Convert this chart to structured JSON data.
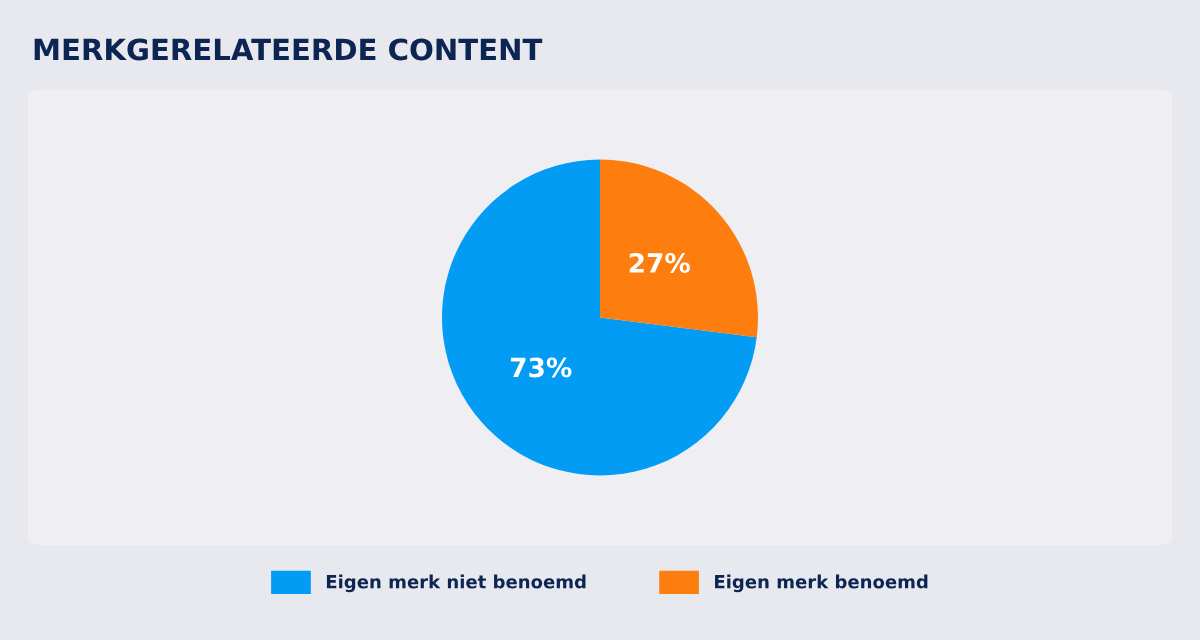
{
  "chart_data": {
    "type": "pie",
    "title": "MERKGERELATEERDE CONTENT",
    "categories": [
      "Eigen merk niet benoemd",
      "Eigen merk benoemd"
    ],
    "values": [
      73,
      27
    ],
    "colors": [
      "#039cf4",
      "#fe7d0f"
    ],
    "value_labels": [
      "73%",
      "27%"
    ],
    "legend": "bottom"
  }
}
